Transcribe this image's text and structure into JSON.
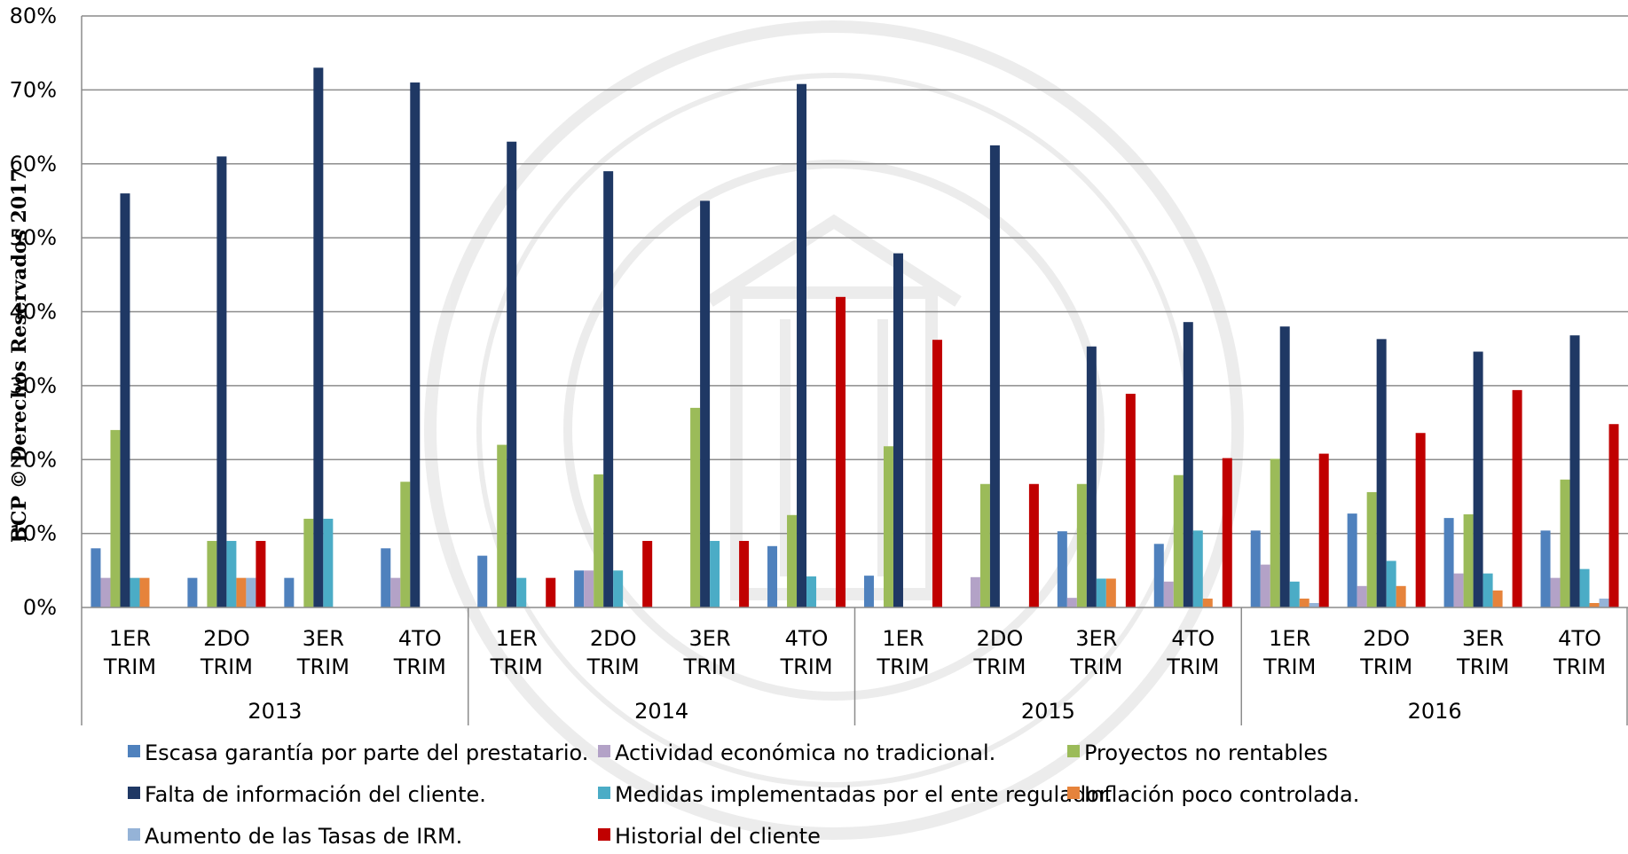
{
  "watermark": "BCP © Derechos Reservados 2017",
  "seal": "BANCO CENTRAL DEL PARAGUAY",
  "chart_data": {
    "type": "bar",
    "title": "",
    "xlabel": "",
    "ylabel": "",
    "ylim": [
      0,
      80
    ],
    "y_ticks": [
      "0%",
      "10%",
      "20%",
      "30%",
      "40%",
      "50%",
      "60%",
      "70%",
      "80%"
    ],
    "grid": true,
    "legend_position": "bottom",
    "years": [
      {
        "label": "2013",
        "quarters": [
          0,
          1,
          2,
          3
        ]
      },
      {
        "label": "2014",
        "quarters": [
          4,
          5,
          6,
          7
        ]
      },
      {
        "label": "2015",
        "quarters": [
          8,
          9,
          10,
          11
        ]
      },
      {
        "label": "2016",
        "quarters": [
          12,
          13,
          14,
          15
        ]
      }
    ],
    "categories": [
      [
        "1ER",
        "TRIM"
      ],
      [
        "2DO",
        "TRIM"
      ],
      [
        "3ER",
        "TRIM"
      ],
      [
        "4TO",
        "TRIM"
      ],
      [
        "1ER",
        "TRIM"
      ],
      [
        "2DO",
        "TRIM"
      ],
      [
        "3ER",
        "TRIM"
      ],
      [
        "4TO",
        "TRIM"
      ],
      [
        "1ER",
        "TRIM"
      ],
      [
        "2DO",
        "TRIM"
      ],
      [
        "3ER",
        "TRIM"
      ],
      [
        "4TO",
        "TRIM"
      ],
      [
        "1ER",
        "TRIM"
      ],
      [
        "2DO",
        "TRIM"
      ],
      [
        "3ER",
        "TRIM"
      ],
      [
        "4TO",
        "TRIM"
      ]
    ],
    "series": [
      {
        "name": "Escasa garantía por parte del prestatario.",
        "color": "#4f81bd",
        "values": [
          8,
          4,
          4,
          8,
          7,
          5,
          0,
          8.3,
          4.3,
          0,
          10.3,
          8.6,
          10.4,
          12.7,
          12.1,
          10.4
        ]
      },
      {
        "name": "Actividad económica no tradicional.",
        "color": "#b3a2c7",
        "values": [
          4,
          0,
          0,
          4,
          0,
          5,
          0,
          0,
          0,
          4.1,
          1.3,
          3.5,
          5.8,
          2.9,
          4.6,
          4
        ]
      },
      {
        "name": "Proyectos no rentables",
        "color": "#9bbb59",
        "values": [
          24,
          9,
          12,
          17,
          22,
          18,
          27,
          12.5,
          21.8,
          16.7,
          16.7,
          17.9,
          20.1,
          15.6,
          12.6,
          17.3
        ]
      },
      {
        "name": "Falta de información del cliente.",
        "color": "#1f3864",
        "values": [
          56,
          61,
          73,
          71,
          63,
          59,
          55,
          70.8,
          47.9,
          62.5,
          35.3,
          38.6,
          38,
          36.3,
          34.6,
          36.8
        ]
      },
      {
        "name": "Medidas implementadas por el ente regulador.",
        "color": "#4bacc6",
        "values": [
          4,
          9,
          12,
          0,
          4,
          5,
          9,
          4.2,
          0,
          0,
          3.9,
          10.4,
          3.5,
          6.3,
          4.6,
          5.2
        ]
      },
      {
        "name": "Inflación poco controlada.",
        "color": "#e6833b",
        "values": [
          4,
          4,
          0,
          0,
          0,
          0,
          0,
          0,
          0,
          0,
          3.9,
          1.2,
          1.2,
          2.9,
          2.3,
          0.6
        ]
      },
      {
        "name": "Aumento de las Tasas de IRM.",
        "color": "#95b3d7",
        "values": [
          0,
          4,
          0,
          0,
          0,
          0,
          0,
          0,
          0,
          0,
          0,
          0,
          0.6,
          0,
          0,
          1.2
        ]
      },
      {
        "name": "Historial del cliente",
        "color": "#c00000",
        "values": [
          0,
          9,
          0,
          0,
          4,
          9,
          9,
          42,
          36.2,
          16.7,
          28.9,
          20.2,
          20.8,
          23.6,
          29.4,
          24.8
        ]
      }
    ]
  }
}
